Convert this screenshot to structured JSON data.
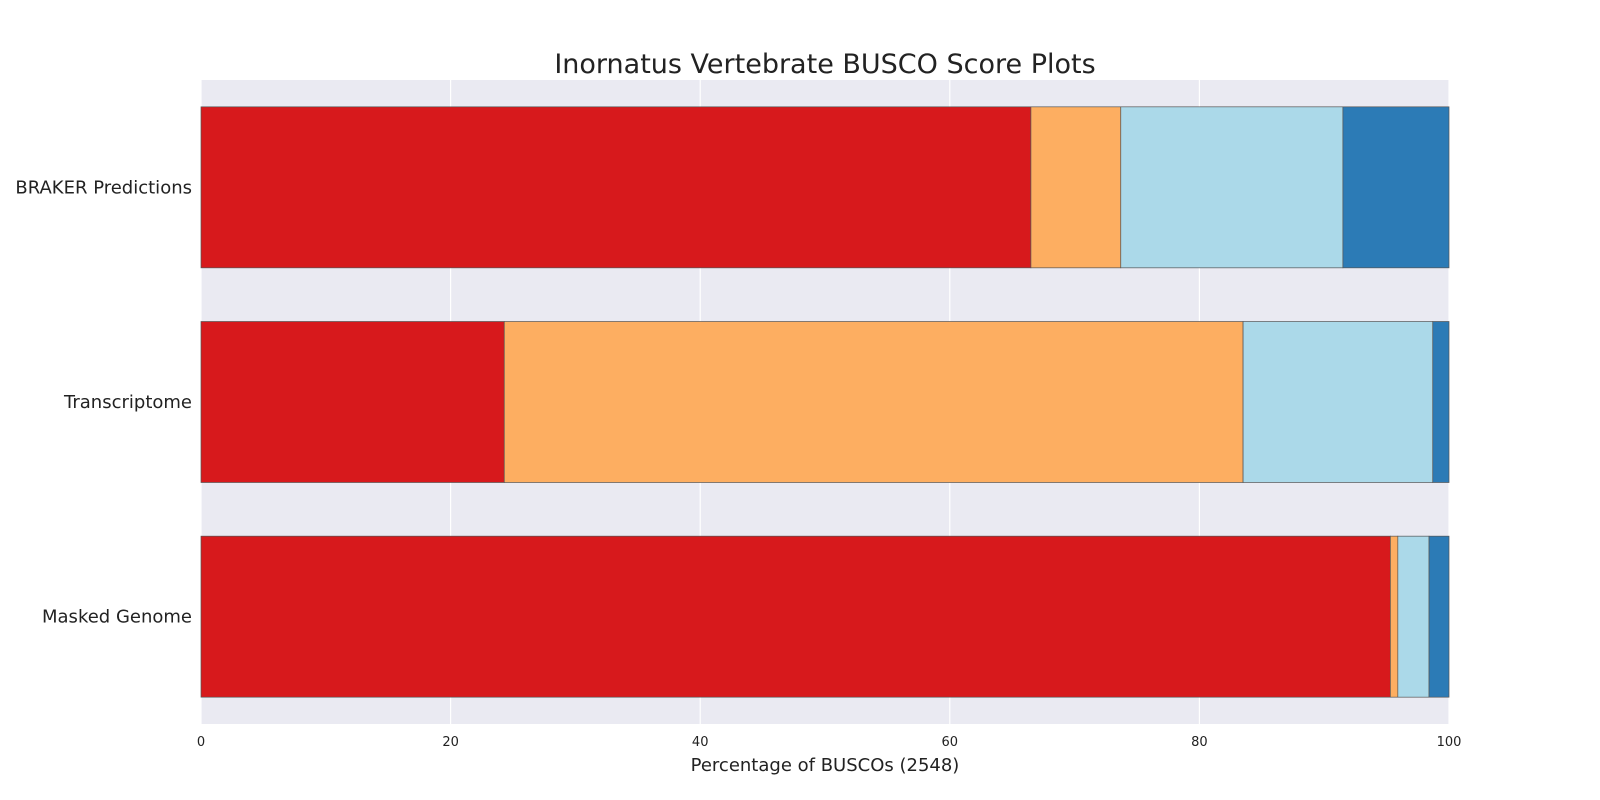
{
  "chart_data": {
    "type": "bar",
    "orientation": "horizontal",
    "stacked": true,
    "title": "Inornatus Vertebrate BUSCO Score Plots",
    "xlabel": "Percentage of BUSCOs (2548)",
    "ylabel": "",
    "xlim": [
      0,
      100
    ],
    "xticks": [
      0,
      20,
      40,
      60,
      80,
      100
    ],
    "grid": true,
    "legend": "none",
    "categories": [
      "BRAKER Predictions",
      "Transcriptome",
      "Masked Genome"
    ],
    "series": [
      {
        "color": "#d7191c",
        "values": [
          66.5,
          24.3,
          95.3
        ]
      },
      {
        "color": "#fdae61",
        "values": [
          7.2,
          59.2,
          0.6
        ]
      },
      {
        "color": "#abd9e9",
        "values": [
          17.8,
          15.2,
          2.5
        ]
      },
      {
        "color": "#2c7bb6",
        "values": [
          8.5,
          1.3,
          1.6
        ]
      }
    ]
  }
}
